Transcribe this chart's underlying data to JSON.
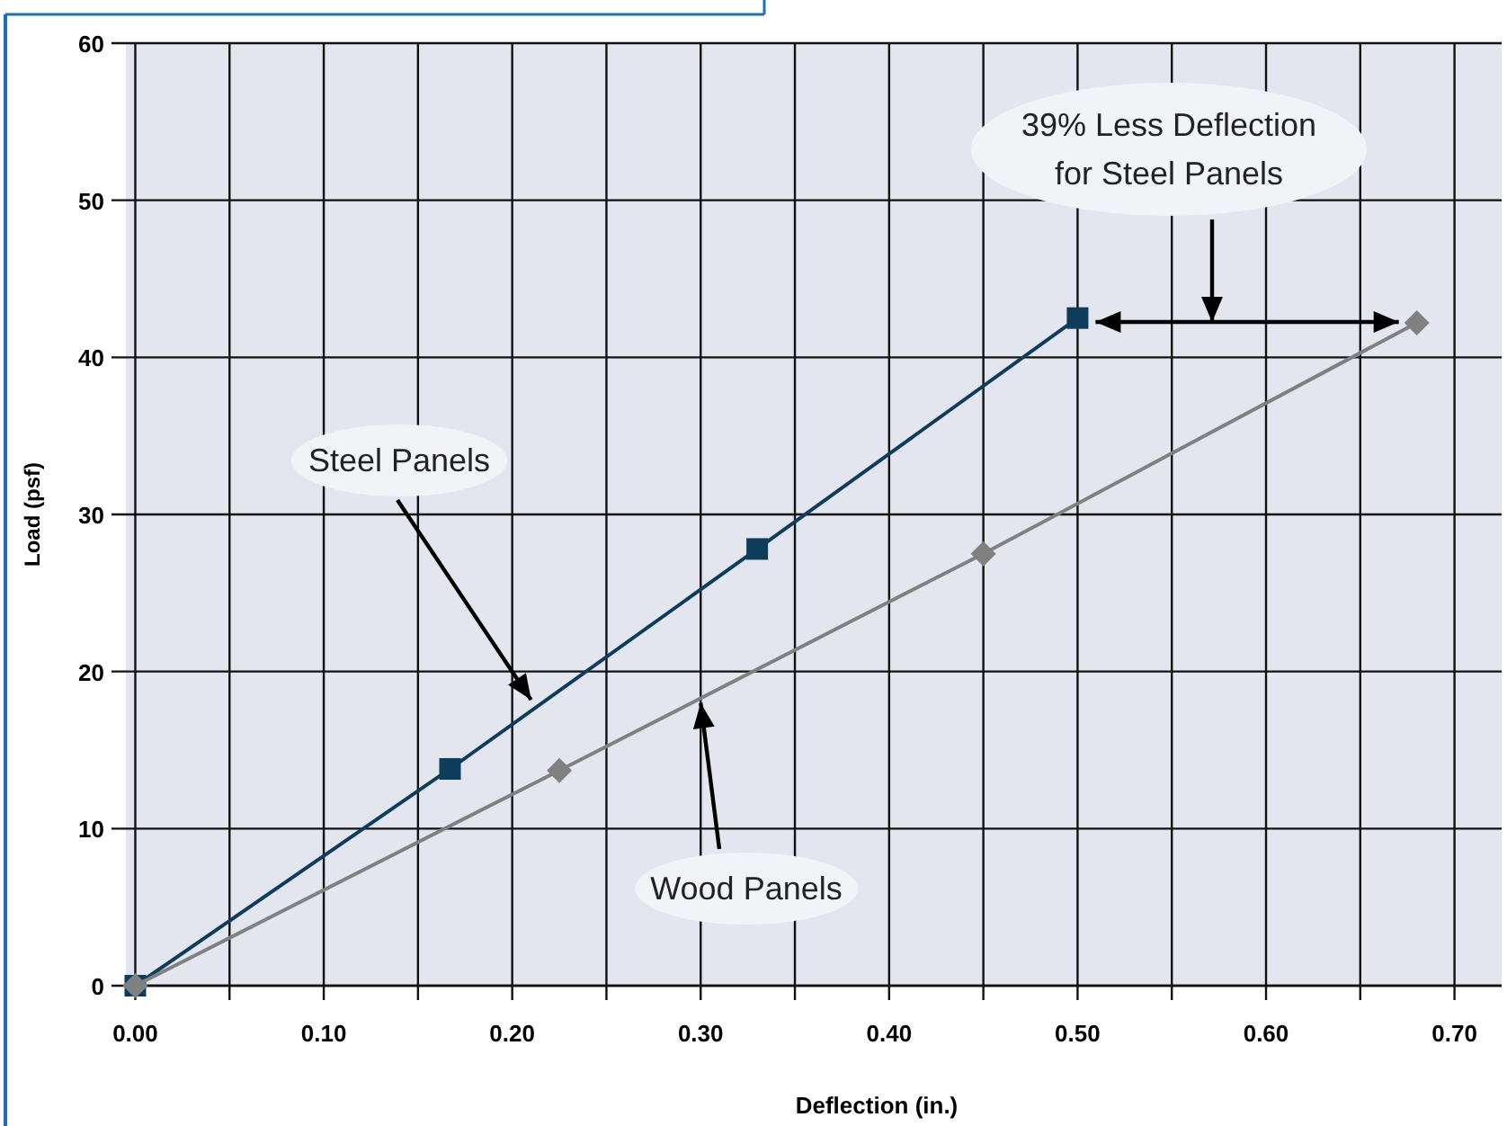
{
  "chart_data": {
    "type": "line",
    "xlabel": "Deflection (in.)",
    "ylabel": "Load (psf)",
    "xlim": [
      -0.005,
      0.725
    ],
    "ylim": [
      0,
      60
    ],
    "xticks": [
      {
        "value": 0,
        "label": "0.00"
      },
      {
        "value": 0.05,
        "label": null
      },
      {
        "value": 0.1,
        "label": "0.10"
      },
      {
        "value": 0.15,
        "label": null
      },
      {
        "value": 0.2,
        "label": "0.20"
      },
      {
        "value": 0.25,
        "label": null
      },
      {
        "value": 0.3,
        "label": "0.30"
      },
      {
        "value": 0.35,
        "label": null
      },
      {
        "value": 0.4,
        "label": "0.40"
      },
      {
        "value": 0.45,
        "label": null
      },
      {
        "value": 0.5,
        "label": "0.50"
      },
      {
        "value": 0.55,
        "label": null
      },
      {
        "value": 0.6,
        "label": "0.60"
      },
      {
        "value": 0.65,
        "label": null
      },
      {
        "value": 0.7,
        "label": "0.70"
      }
    ],
    "yticks": [
      0,
      10,
      20,
      30,
      40,
      50,
      60
    ],
    "grid": true,
    "line_style": "solid",
    "series": [
      {
        "x": [
          0,
          0.167,
          0.33,
          0.5
        ],
        "values": [
          0,
          13.8,
          27.8,
          42.5
        ],
        "color": "#0e3d5c",
        "marker": "square"
      },
      {
        "x": [
          0,
          0.225,
          0.45,
          0.68
        ],
        "values": [
          0,
          13.7,
          27.5,
          42.2
        ],
        "color": "#808080",
        "marker": "diamond"
      }
    ],
    "annotations": [
      {
        "text": "Steel Panels",
        "x": 0.21,
        "y": 18.2
      },
      {
        "text": "Wood Panels",
        "x": 0.3,
        "y": 18
      },
      "39% Less Deflection\nfor Steel Panels"
    ]
  }
}
